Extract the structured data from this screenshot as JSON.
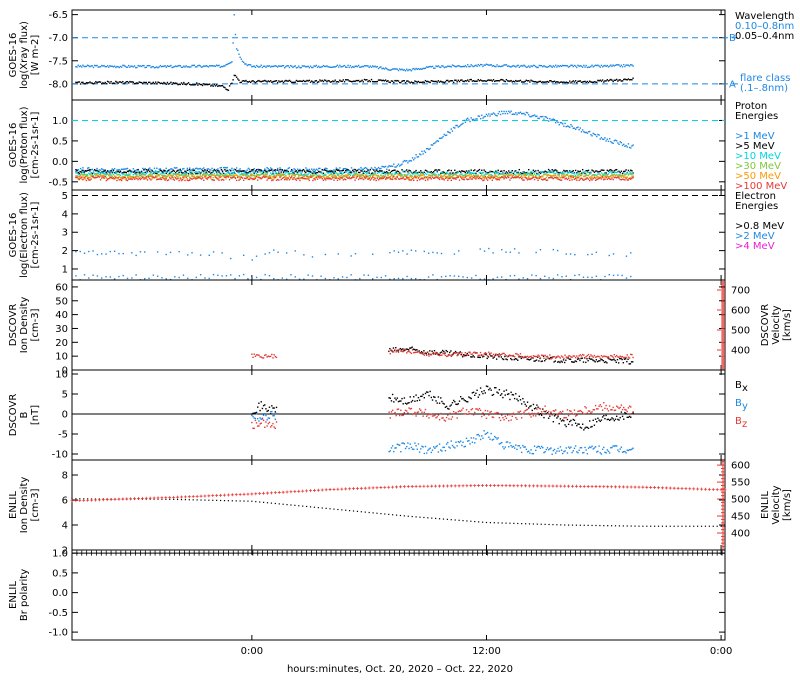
{
  "footer": "hours:minutes, Oct. 20, 2020 – Oct. 22, 2020",
  "x_ticks": [
    "0:00",
    "12:00",
    "0:00"
  ],
  "x_tick_hours": [
    0,
    12,
    24
  ],
  "x_range_hours": [
    -9.2,
    24.2
  ],
  "chart_data": [
    {
      "type": "scatter",
      "panel": "xray",
      "ylabel": [
        "GOES-16",
        "log(Xray flux)",
        "[W m-2]"
      ],
      "ylim": [
        -8.35,
        -6.4
      ],
      "y_scale": "log10",
      "ticks": [
        -6.5,
        -7.0,
        -7.5,
        -8.0
      ],
      "tick_labels": [
        "-6.5",
        "-7.0",
        "-7.5",
        "-8.0"
      ],
      "legend_title": "Wavelength",
      "legend": [
        {
          "label": "0.10–0.8nm",
          "color": "#1e88e5"
        },
        {
          "label": "0.05–0.4nm",
          "color": "#000000"
        }
      ],
      "ref_lines": [
        {
          "y": -7.0,
          "label": "B",
          "color": "#1e88e5"
        },
        {
          "y": -8.0,
          "label": "A",
          "color": "#1e88e5"
        }
      ],
      "note": "flare class\n(.1–.8nm)",
      "series": [
        {
          "name": "0.10–0.8nm",
          "color": "#1e88e5",
          "x": [
            -9,
            -7,
            -5,
            -3,
            -1.5,
            -1,
            -0.9,
            -0.8,
            -0.6,
            -0.4,
            0,
            2,
            4,
            6,
            7,
            8,
            9,
            10,
            12,
            14,
            16,
            18,
            19.5
          ],
          "y": [
            -7.62,
            -7.62,
            -7.63,
            -7.62,
            -7.62,
            -7.5,
            -6.5,
            -7.2,
            -7.4,
            -7.55,
            -7.62,
            -7.63,
            -7.62,
            -7.62,
            -7.68,
            -7.7,
            -7.65,
            -7.62,
            -7.6,
            -7.62,
            -7.62,
            -7.62,
            -7.6
          ]
        },
        {
          "name": "0.05–0.4nm",
          "color": "#000000",
          "x": [
            -9,
            -7,
            -5,
            -3,
            -1.5,
            -1.2,
            -1,
            -0.9,
            -0.6,
            0,
            2,
            4,
            6,
            8,
            10,
            12,
            14,
            16,
            18,
            19.5
          ],
          "y": [
            -7.98,
            -7.97,
            -7.98,
            -8.0,
            -8.05,
            -8.12,
            -7.95,
            -7.8,
            -7.95,
            -7.95,
            -7.95,
            -7.94,
            -7.93,
            -7.96,
            -7.95,
            -7.92,
            -7.94,
            -7.96,
            -7.94,
            -7.9
          ]
        }
      ]
    },
    {
      "type": "scatter",
      "panel": "proton",
      "ylabel": [
        "GOES-16",
        "log(Proton flux)",
        "[cm-2s-1sr-1]"
      ],
      "ylim": [
        -0.7,
        1.5
      ],
      "ticks": [
        1.0,
        0.5,
        0.0,
        -0.5
      ],
      "tick_labels": [
        "1.0",
        "0.5",
        "0.0",
        "-0.5"
      ],
      "ref_line": {
        "y": 1.0,
        "color": "#00d5e5"
      },
      "legend_title": "Proton\nEnergies",
      "legend": [
        {
          "label": ">1 MeV",
          "color": "#1e88e5"
        },
        {
          "label": ">5 MeV",
          "color": "#000000"
        },
        {
          "label": ">10 MeV",
          "color": "#00d5e5"
        },
        {
          "label": ">30 MeV",
          "color": "#7ec83a"
        },
        {
          "label": ">50 MeV",
          "color": "#ff9800"
        },
        {
          "label": ">100 MeV",
          "color": "#e53935"
        }
      ],
      "series": [
        {
          "name": ">1 MeV",
          "color": "#1e88e5",
          "x": [
            -9,
            -6,
            -3,
            0,
            3,
            6,
            7,
            8,
            9,
            10,
            11,
            12,
            13,
            14,
            15,
            16,
            17,
            18,
            19.5
          ],
          "y": [
            -0.2,
            -0.22,
            -0.2,
            -0.2,
            -0.21,
            -0.2,
            -0.15,
            0.0,
            0.3,
            0.7,
            1.0,
            1.12,
            1.2,
            1.15,
            1.05,
            0.9,
            0.75,
            0.55,
            0.35
          ]
        },
        {
          "name": ">5 MeV",
          "color": "#000000",
          "x": [
            -9,
            19.5
          ],
          "y": [
            -0.25,
            -0.25
          ]
        },
        {
          "name": ">10 MeV",
          "color": "#00d5e5",
          "x": [
            -9,
            19.5
          ],
          "y": [
            -0.3,
            -0.3
          ]
        },
        {
          "name": ">30 MeV",
          "color": "#7ec83a",
          "x": [
            -9,
            19.5
          ],
          "y": [
            -0.35,
            -0.35
          ]
        },
        {
          "name": ">50 MeV",
          "color": "#ff9800",
          "x": [
            -9,
            19.5
          ],
          "y": [
            -0.38,
            -0.38
          ]
        },
        {
          "name": ">100 MeV",
          "color": "#e53935",
          "x": [
            -9,
            19.5
          ],
          "y": [
            -0.42,
            -0.42
          ]
        }
      ]
    },
    {
      "type": "scatter",
      "panel": "electron",
      "ylabel": [
        "GOES-16",
        "log(Electron flux)",
        "[cm-2s-1sr-1]"
      ],
      "ylim": [
        0.4,
        5.3
      ],
      "ticks": [
        5,
        4,
        3,
        2,
        1
      ],
      "tick_labels": [
        "5",
        "4",
        "3",
        "2",
        "1"
      ],
      "ref_line": {
        "y": 5.0,
        "color": "#000000"
      },
      "legend_title": "Electron\nEnergies",
      "legend": [
        {
          "label": ">0.8 MeV",
          "color": "#000000"
        },
        {
          "label": ">2 MeV",
          "color": "#1e88e5"
        },
        {
          "label": ">4 MeV",
          "color": "#e91ed8"
        }
      ],
      "series": [
        {
          "name": ">2 MeV",
          "color": "#1e88e5",
          "x": [
            -9,
            -6,
            -3,
            0,
            1,
            3,
            6,
            7,
            8,
            10,
            12,
            14,
            16,
            18,
            19.5
          ],
          "y": [
            1.9,
            1.8,
            1.9,
            1.6,
            1.9,
            1.8,
            1.7,
            1.9,
            1.9,
            1.9,
            2.0,
            2.0,
            1.9,
            1.8,
            1.8
          ]
        },
        {
          "name": ">2 MeV low",
          "color": "#1e88e5",
          "x": [
            -9,
            19.5
          ],
          "y": [
            0.55,
            0.55
          ]
        }
      ]
    },
    {
      "type": "scatter",
      "panel": "dscovr_density",
      "ylabel": [
        "DSCOVR",
        "Ion Density",
        "[cm-3]"
      ],
      "ylim": [
        0,
        65
      ],
      "ticks": [
        60,
        50,
        40,
        30,
        20,
        10,
        0
      ],
      "tick_labels": [
        "60",
        "50",
        "40",
        "30",
        "20",
        "10",
        "0"
      ],
      "right_ylabel": [
        "DSCOVR",
        "Velocity",
        "[km/s]"
      ],
      "right_ylim": [
        300,
        750
      ],
      "right_ticks": [
        700,
        600,
        500,
        400
      ],
      "right_tick_labels": [
        "700",
        "600",
        "500",
        "400"
      ],
      "series": [
        {
          "name": "density",
          "color": "#000000",
          "x": [
            7,
            8,
            9,
            10,
            11,
            12,
            13,
            14,
            15,
            16,
            17,
            18,
            19.5
          ],
          "y": [
            14,
            15,
            13,
            12,
            11,
            10,
            9,
            8,
            8,
            7,
            7,
            7,
            6
          ]
        },
        {
          "name": "velocity",
          "color": "#e53935",
          "axis": "right",
          "x": [
            0,
            1,
            7,
            8,
            9,
            10,
            11,
            12,
            13,
            14,
            15,
            16,
            17,
            18,
            19.5
          ],
          "y": [
            370,
            370,
            390,
            395,
            380,
            375,
            380,
            380,
            375,
            370,
            365,
            365,
            370,
            365,
            370
          ]
        }
      ]
    },
    {
      "type": "scatter",
      "panel": "dscovr_b",
      "ylabel": [
        "DSCOVR",
        "B",
        "[nT]"
      ],
      "ylim": [
        -11.5,
        11
      ],
      "ticks": [
        10,
        5,
        0,
        -5,
        -10
      ],
      "tick_labels": [
        "10",
        "5",
        "0",
        "-5",
        "-10"
      ],
      "legend": [
        {
          "label": "B",
          "sub": "x",
          "color": "#000000"
        },
        {
          "label": "B",
          "sub": "y",
          "color": "#1e88e5"
        },
        {
          "label": "B",
          "sub": "z",
          "color": "#e53935"
        }
      ],
      "series": [
        {
          "name": "Bx",
          "color": "#000000",
          "x": [
            0,
            0.5,
            1,
            7,
            8,
            9,
            10,
            11,
            12,
            13,
            14,
            15,
            16,
            17,
            18,
            19.5
          ],
          "y": [
            1,
            2,
            1,
            4,
            3,
            5,
            2,
            4,
            6,
            5,
            3,
            0,
            -2,
            -3,
            -1,
            0
          ]
        },
        {
          "name": "By",
          "color": "#1e88e5",
          "x": [
            0,
            0.5,
            1,
            7,
            8,
            9,
            10,
            11,
            12,
            13,
            14,
            15,
            16,
            17,
            18,
            19.5
          ],
          "y": [
            0,
            -1,
            0,
            -9,
            -8,
            -9,
            -8,
            -7,
            -5,
            -8,
            -9,
            -9,
            -9,
            -9,
            -9,
            -9
          ]
        },
        {
          "name": "Bz",
          "color": "#e53935",
          "x": [
            0,
            0.5,
            1,
            7,
            8,
            9,
            10,
            11,
            12,
            13,
            14,
            15,
            16,
            17,
            18,
            19.5
          ],
          "y": [
            -3,
            -2,
            -3,
            0,
            1,
            0,
            -1,
            1,
            0,
            -1,
            0,
            1,
            0,
            1,
            2,
            1
          ]
        }
      ]
    },
    {
      "type": "line",
      "panel": "enlil_density",
      "ylabel": [
        "ENLIL",
        "Ion Density",
        "[cm-3]"
      ],
      "ylim": [
        2,
        9.2
      ],
      "ticks": [
        8,
        6,
        4,
        2
      ],
      "tick_labels": [
        "8",
        "6",
        "4",
        "2"
      ],
      "right_ylabel": [
        "ENLIL",
        "Velocity",
        "[km/s]"
      ],
      "right_ylim": [
        350,
        615
      ],
      "right_ticks": [
        600,
        550,
        500,
        450,
        400
      ],
      "right_tick_labels": [
        "600",
        "550",
        "500",
        "450",
        "400"
      ],
      "series": [
        {
          "name": "density",
          "color": "#000000",
          "x": [
            -9.2,
            -4,
            0,
            4,
            8,
            12,
            16,
            20,
            24.2
          ],
          "y": [
            6.1,
            6.05,
            5.9,
            5.3,
            4.7,
            4.2,
            4.0,
            3.9,
            3.9
          ]
        },
        {
          "name": "velocity",
          "color": "#e53935",
          "axis": "right",
          "x": [
            -9.2,
            -4,
            0,
            4,
            8,
            12,
            16,
            20,
            24.2
          ],
          "y": [
            495,
            505,
            515,
            528,
            537,
            540,
            538,
            535,
            527
          ]
        }
      ]
    },
    {
      "type": "line",
      "panel": "enlil_polarity",
      "ylabel": [
        "ENLIL",
        "Br polarity"
      ],
      "ylim": [
        -1.2,
        1.08
      ],
      "ticks": [
        1.0,
        0.5,
        0.0,
        -0.5,
        -1.0
      ],
      "tick_labels": [
        "1.0",
        "0.5",
        "0.0",
        "-0.5",
        "-1.0"
      ],
      "series": [
        {
          "name": "polarity",
          "color": "#000000",
          "x": [
            -9.2,
            24.2
          ],
          "y": [
            1.0,
            1.0
          ]
        }
      ]
    }
  ]
}
